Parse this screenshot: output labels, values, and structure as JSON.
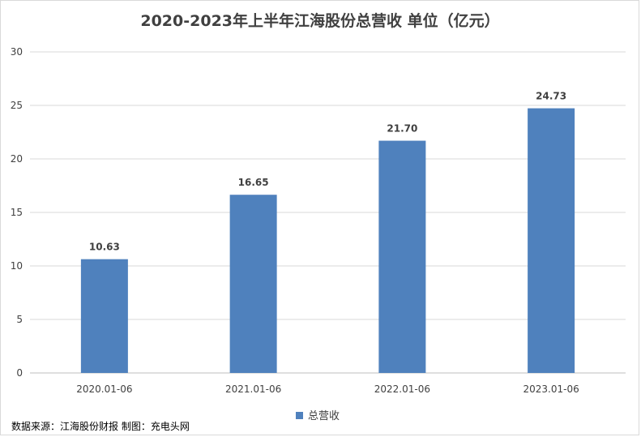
{
  "chart_data": {
    "type": "bar",
    "title": "2020-2023年上半年江海股份总营收 单位（亿元）",
    "categories": [
      "2020.01-06",
      "2021.01-06",
      "2022.01-06",
      "2023.01-06"
    ],
    "series": [
      {
        "name": "总营收",
        "values": [
          10.63,
          16.65,
          21.7,
          24.73
        ],
        "color": "#4f81bd"
      }
    ],
    "data_labels": [
      "10.63",
      "16.65",
      "21.70",
      "24.73"
    ],
    "yticks": [
      0,
      5,
      10,
      15,
      20,
      25,
      30
    ],
    "ylim": [
      0,
      30
    ],
    "grid": true,
    "legend_position": "bottom"
  },
  "source_note": "数据来源：江海股份财报 制图：充电头网"
}
